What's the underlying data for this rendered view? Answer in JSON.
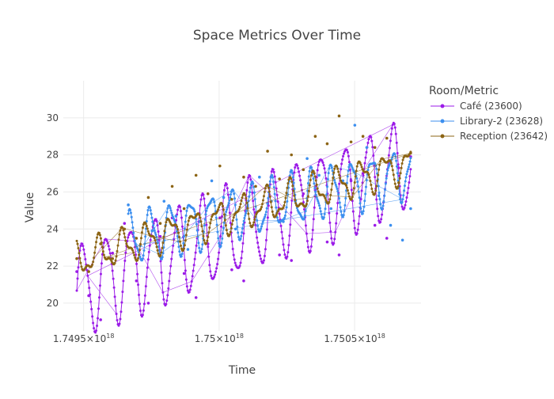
{
  "chart_data": {
    "type": "line",
    "title": "Space Metrics Over Time",
    "xlabel": "Time",
    "ylabel": "Value",
    "xlim": [
      1.749425e+18,
      1.750745e+18
    ],
    "ylim": [
      18.5,
      32.0
    ],
    "xticks": [
      {
        "value": 1.7495e+18,
        "mantissa": "1.7495×10",
        "exp": "18"
      },
      {
        "value": 1.75e+18,
        "mantissa": "1.75×10",
        "exp": "18"
      },
      {
        "value": 1.7505e+18,
        "mantissa": "1.7505×10",
        "exp": "18"
      }
    ],
    "yticks": [
      20,
      22,
      24,
      26,
      28,
      30
    ],
    "grid": true,
    "legend": {
      "title": "Room/Metric",
      "placement": "top-right"
    },
    "series": [
      {
        "name": "Café (23600)",
        "color": "#9b1be8",
        "base": 20.4,
        "trend": 7.3,
        "amplitude": 2.4,
        "x": [
          1.7494747e+18,
          1.7495187e+18,
          1.7495627e+18,
          1.7496067e+18,
          1.7496507e+18,
          1.7496947e+18,
          1.7497387e+18,
          1.7497827e+18,
          1.7498267e+18,
          1.7498707e+18,
          1.7499147e+18,
          1.7499587e+18,
          1.7500027e+18,
          1.7500467e+18,
          1.7500907e+18,
          1.7501347e+18,
          1.7501787e+18,
          1.7502227e+18,
          1.7502667e+18,
          1.7503107e+18,
          1.7503547e+18,
          1.7503987e+18,
          1.7504427e+18,
          1.7504867e+18,
          1.7505307e+18,
          1.7505747e+18,
          1.7506187e+18,
          1.7506627e+18,
          1.7507067e+18
        ],
        "y": [
          21.7,
          20.4,
          19.1,
          22.7,
          24.3,
          21.2,
          20.0,
          23.6,
          24.6,
          21.6,
          20.3,
          23.2,
          24.6,
          21.8,
          21.2,
          24.9,
          25.4,
          22.6,
          22.3,
          25.9,
          26.1,
          23.3,
          22.6,
          26.6,
          27.0,
          24.2,
          23.5,
          27.3,
          27.9
        ]
      },
      {
        "name": "Library-2 (23628)",
        "color": "#3c8fef",
        "base": 22.6,
        "trend": 4.6,
        "amplitude": 1.3,
        "x": [
          1.7496647e+18,
          1.7497087e+18,
          1.7497527e+18,
          1.7497967e+18,
          1.7498407e+18,
          1.7498847e+18,
          1.7499287e+18,
          1.7499727e+18,
          1.7500167e+18,
          1.7500607e+18,
          1.7501047e+18,
          1.7501487e+18,
          1.7501927e+18,
          1.7502367e+18,
          1.7502807e+18,
          1.7503247e+18,
          1.7503687e+18,
          1.7504127e+18,
          1.7504567e+18,
          1.7505007e+18,
          1.7505447e+18,
          1.7505887e+18,
          1.7506327e+18,
          1.7506767e+18,
          1.7507067e+18
        ],
        "y": [
          25.3,
          23.1,
          23.9,
          25.5,
          24.7,
          22.9,
          24.4,
          26.6,
          25.7,
          24.0,
          25.2,
          26.8,
          25.5,
          24.4,
          25.5,
          27.8,
          26.9,
          25.1,
          26.6,
          29.6,
          28.4,
          25.8,
          24.2,
          23.4,
          25.1
        ]
      },
      {
        "name": "Reception (23642)",
        "color": "#8c6414",
        "base": 22.1,
        "trend": 5.6,
        "amplitude": 0.8,
        "x": [
          1.7494747e+18,
          1.7495187e+18,
          1.7495627e+18,
          1.7496067e+18,
          1.7496507e+18,
          1.7496947e+18,
          1.7497387e+18,
          1.7497827e+18,
          1.7498267e+18,
          1.7498707e+18,
          1.7499147e+18,
          1.7499587e+18,
          1.7500027e+18,
          1.7500467e+18,
          1.7500907e+18,
          1.7501347e+18,
          1.7501787e+18,
          1.7502227e+18,
          1.7502667e+18,
          1.7503107e+18,
          1.7503547e+18,
          1.7503987e+18,
          1.7504427e+18,
          1.7504867e+18,
          1.7505307e+18,
          1.7505747e+18,
          1.7506187e+18,
          1.7506627e+18,
          1.7507067e+18
        ],
        "y": [
          22.4,
          21.7,
          23.2,
          22.4,
          24.0,
          23.5,
          25.7,
          24.3,
          26.3,
          25.1,
          26.9,
          25.9,
          27.4,
          25.6,
          26.8,
          26.3,
          28.2,
          26.7,
          28.0,
          27.2,
          29.0,
          28.6,
          30.1,
          28.7,
          29.0,
          28.4,
          28.9,
          26.5,
          28.1
        ]
      }
    ]
  }
}
